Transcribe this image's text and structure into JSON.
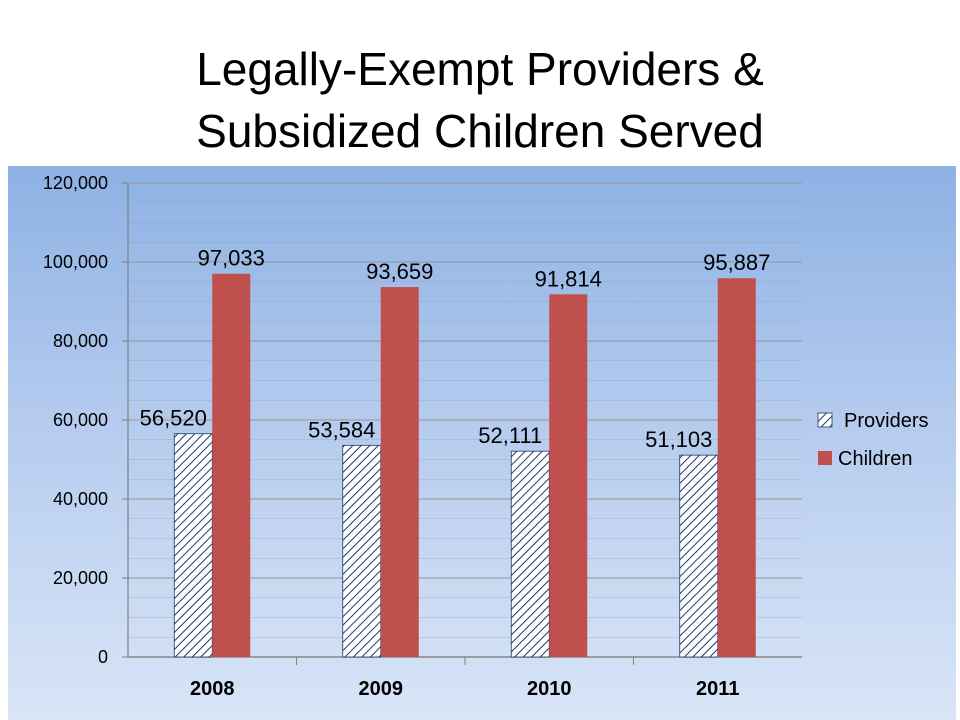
{
  "slide": {
    "title_line1": "Legally-Exempt Providers &",
    "title_line2": "Subsidized Children Served"
  },
  "colors": {
    "providers_hatch": "#1f3864",
    "providers_fill": "#ffffff",
    "children": "#c0504d",
    "gridline": "#9a9a9a"
  },
  "chart_data": {
    "type": "bar",
    "categories": [
      "2008",
      "2009",
      "2010",
      "2011"
    ],
    "series": [
      {
        "name": "Providers",
        "values": [
          56520,
          53584,
          52111,
          51103
        ],
        "labels": [
          "56,520",
          "53,584",
          "52,111",
          "51,103"
        ]
      },
      {
        "name": "Children",
        "values": [
          97033,
          93659,
          91814,
          95887
        ],
        "labels": [
          "97,033",
          "93,659",
          "91,814",
          "95,887"
        ]
      }
    ],
    "ylim": [
      0,
      120000
    ],
    "yticks": [
      0,
      20000,
      40000,
      60000,
      80000,
      100000,
      120000
    ],
    "ytick_labels": [
      "0",
      "20,000",
      "40,000",
      "60,000",
      "80,000",
      "100,000",
      "120,000"
    ],
    "grid": true,
    "legend_position": "right"
  }
}
